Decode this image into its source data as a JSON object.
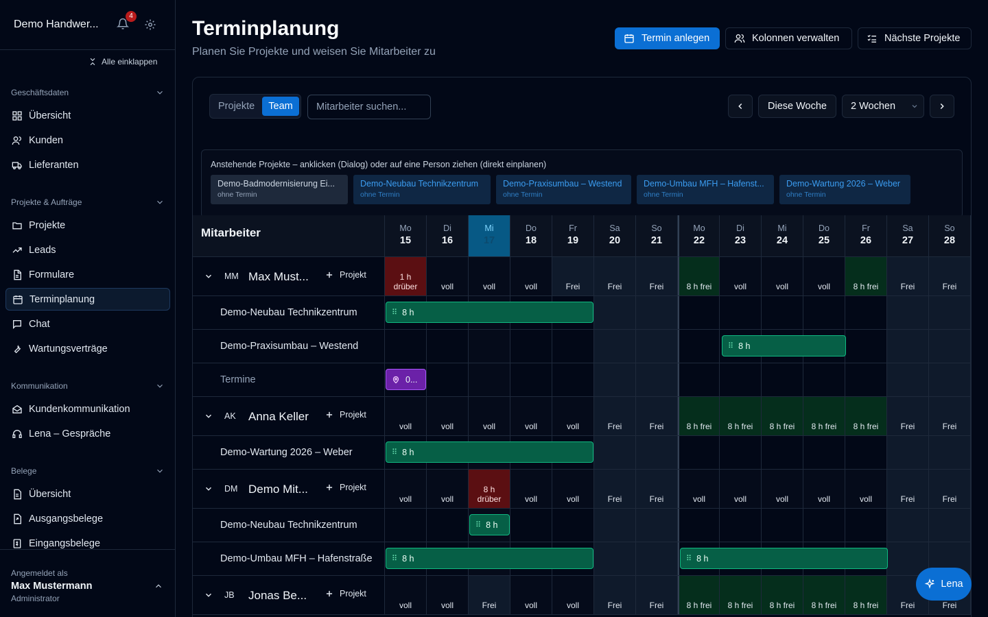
{
  "sidebar": {
    "company": "Demo Handwer...",
    "notifications": "4",
    "collapse_all": "Alle einklappen",
    "groups": [
      {
        "label": "Geschäftsdaten",
        "items": [
          {
            "label": "Übersicht",
            "icon": "grid-icon"
          },
          {
            "label": "Kunden",
            "icon": "users-icon"
          },
          {
            "label": "Lieferanten",
            "icon": "truck-icon"
          }
        ]
      },
      {
        "label": "Projekte & Aufträge",
        "items": [
          {
            "label": "Projekte",
            "icon": "folder-icon"
          },
          {
            "label": "Leads",
            "icon": "trend-icon"
          },
          {
            "label": "Formulare",
            "icon": "file-icon"
          },
          {
            "label": "Terminplanung",
            "icon": "calendar-icon",
            "active": true
          },
          {
            "label": "Chat",
            "icon": "chat-icon"
          },
          {
            "label": "Wartungsverträge",
            "icon": "wrench-icon"
          }
        ]
      },
      {
        "label": "Kommunikation",
        "items": [
          {
            "label": "Kundenkommunikation",
            "icon": "mail-icon"
          },
          {
            "label": "Lena – Gespräche",
            "icon": "headset-icon"
          }
        ]
      },
      {
        "label": "Belege",
        "items": [
          {
            "label": "Übersicht",
            "icon": "receipt-icon"
          },
          {
            "label": "Ausgangsbelege",
            "icon": "receipt-out-icon"
          },
          {
            "label": "Eingangsbelege",
            "icon": "receipt-in-icon"
          }
        ]
      }
    ],
    "user": {
      "label": "Angemeldet als",
      "name": "Max Mustermann",
      "role": "Administrator"
    }
  },
  "header": {
    "title": "Terminplanung",
    "subtitle": "Planen Sie Projekte und weisen Sie Mitarbeiter zu",
    "buttons": {
      "create": "Termin anlegen",
      "columns": "Kolonnen verwalten",
      "next": "Nächste Projekte"
    }
  },
  "toolbar": {
    "seg_projects": "Projekte",
    "seg_team": "Team",
    "search_placeholder": "Mitarbeiter suchen...",
    "this_week": "Diese Woche",
    "range": "2 Wochen"
  },
  "pending": {
    "title": "Anstehende Projekte – anklicken (Dialog) oder auf eine Person ziehen (direkt einplanen)",
    "chips": [
      {
        "title": "Demo-Badmodernisierung Ei...",
        "sub": "ohne Termin",
        "style": "grey"
      },
      {
        "title": "Demo-Neubau Technikzentrum",
        "sub": "ohne Termin",
        "style": "blue"
      },
      {
        "title": "Demo-Praxisumbau – Westend",
        "sub": "ohne Termin",
        "style": "blue"
      },
      {
        "title": "Demo-Umbau MFH – Hafenst...",
        "sub": "ohne Termin",
        "style": "blue"
      },
      {
        "title": "Demo-Wartung 2026 – Weber",
        "sub": "ohne Termin",
        "style": "blue"
      }
    ]
  },
  "grid": {
    "column_label": "Mitarbeiter",
    "add_project": "Projekt",
    "today_index": 2,
    "days": [
      {
        "w": "Mo",
        "n": "15"
      },
      {
        "w": "Di",
        "n": "16"
      },
      {
        "w": "Mi",
        "n": "17"
      },
      {
        "w": "Do",
        "n": "18"
      },
      {
        "w": "Fr",
        "n": "19"
      },
      {
        "w": "Sa",
        "n": "20"
      },
      {
        "w": "So",
        "n": "21"
      },
      {
        "w": "Mo",
        "n": "22"
      },
      {
        "w": "Di",
        "n": "23"
      },
      {
        "w": "Mi",
        "n": "24"
      },
      {
        "w": "Do",
        "n": "25"
      },
      {
        "w": "Fr",
        "n": "26"
      },
      {
        "w": "Sa",
        "n": "27"
      },
      {
        "w": "So",
        "n": "28"
      }
    ],
    "employees": [
      {
        "initials": "MM",
        "name": "Max Must...",
        "capacity": [
          "1 h\ndrüber",
          "voll",
          "voll",
          "voll",
          "Frei",
          "Frei",
          "Frei",
          "8 h frei",
          "voll",
          "voll",
          "voll",
          "8 h frei",
          "Frei",
          "Frei"
        ],
        "rows": [
          {
            "name": "Demo-Neubau Technikzentrum",
            "bars": [
              {
                "start": 0,
                "span": 5,
                "label": "8 h"
              }
            ]
          },
          {
            "name": "Demo-Praxisumbau – Westend",
            "bars": [
              {
                "start": 8,
                "span": 3,
                "label": "8 h"
              }
            ]
          },
          {
            "name": "Termine",
            "muted": true,
            "bars": [
              {
                "start": 0,
                "span": 1,
                "label": "0...",
                "type": "appointment"
              }
            ]
          }
        ]
      },
      {
        "initials": "AK",
        "name": "Anna Keller",
        "capacity": [
          "voll",
          "voll",
          "voll",
          "voll",
          "voll",
          "Frei",
          "Frei",
          "8 h frei",
          "8 h frei",
          "8 h frei",
          "8 h frei",
          "8 h frei",
          "Frei",
          "Frei"
        ],
        "rows": [
          {
            "name": "Demo-Wartung 2026 – Weber",
            "bars": [
              {
                "start": 0,
                "span": 5,
                "label": "8 h"
              }
            ]
          }
        ]
      },
      {
        "initials": "DM",
        "name": "Demo Mit...",
        "capacity": [
          "voll",
          "voll",
          "8 h\ndrüber",
          "voll",
          "voll",
          "Frei",
          "Frei",
          "voll",
          "voll",
          "voll",
          "voll",
          "voll",
          "Frei",
          "Frei"
        ],
        "rows": [
          {
            "name": "Demo-Neubau Technikzentrum",
            "bars": [
              {
                "start": 2,
                "span": 1,
                "label": "8 h"
              }
            ]
          },
          {
            "name": "Demo-Umbau MFH – Hafenstraße",
            "bars": [
              {
                "start": 0,
                "span": 5,
                "label": "8 h"
              },
              {
                "start": 7,
                "span": 5,
                "label": "8 h"
              }
            ]
          }
        ]
      },
      {
        "initials": "JB",
        "name": "Jonas Be...",
        "capacity": [
          "voll",
          "voll",
          "Frei",
          "voll",
          "voll",
          "Frei",
          "Frei",
          "8 h frei",
          "8 h frei",
          "8 h frei",
          "8 h frei",
          "8 h frei",
          "Frei",
          "Frei"
        ],
        "rows": []
      }
    ]
  },
  "fab": {
    "label": "Lena"
  }
}
